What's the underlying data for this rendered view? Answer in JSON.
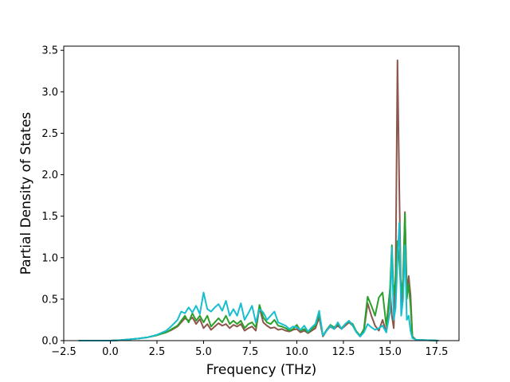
{
  "chart_data": {
    "type": "line",
    "title": "",
    "xlabel": "Frequency (THz)",
    "ylabel": "Partial Density of States",
    "xlim": [
      -2.5,
      18.7
    ],
    "ylim": [
      0,
      3.55
    ],
    "xticks": [
      -2.5,
      0.0,
      2.5,
      5.0,
      7.5,
      10.0,
      12.5,
      15.0,
      17.5
    ],
    "xtick_labels": [
      "−2.5",
      "0.0",
      "2.5",
      "5.0",
      "7.5",
      "10.0",
      "12.5",
      "15.0",
      "17.5"
    ],
    "yticks": [
      0.0,
      0.5,
      1.0,
      1.5,
      2.0,
      2.5,
      3.0,
      3.5
    ],
    "ytick_labels": [
      "0.0",
      "0.5",
      "1.0",
      "1.5",
      "2.0",
      "2.5",
      "3.0",
      "3.5"
    ],
    "grid": false,
    "legend": "none",
    "series": [
      {
        "color": "#8c564b",
        "points": [
          [
            -1.7,
            0
          ],
          [
            0,
            0
          ],
          [
            0.5,
            0.005
          ],
          [
            1,
            0.015
          ],
          [
            1.5,
            0.025
          ],
          [
            2,
            0.04
          ],
          [
            2.5,
            0.065
          ],
          [
            3,
            0.1
          ],
          [
            3.3,
            0.13
          ],
          [
            3.6,
            0.17
          ],
          [
            3.8,
            0.22
          ],
          [
            4,
            0.27
          ],
          [
            4.2,
            0.24
          ],
          [
            4.4,
            0.28
          ],
          [
            4.6,
            0.2
          ],
          [
            4.8,
            0.26
          ],
          [
            5,
            0.15
          ],
          [
            5.2,
            0.2
          ],
          [
            5.4,
            0.13
          ],
          [
            5.6,
            0.17
          ],
          [
            5.8,
            0.21
          ],
          [
            6,
            0.18
          ],
          [
            6.2,
            0.2
          ],
          [
            6.4,
            0.15
          ],
          [
            6.6,
            0.19
          ],
          [
            6.8,
            0.17
          ],
          [
            7,
            0.2
          ],
          [
            7.2,
            0.12
          ],
          [
            7.4,
            0.15
          ],
          [
            7.6,
            0.17
          ],
          [
            7.8,
            0.12
          ],
          [
            8,
            0.4
          ],
          [
            8.2,
            0.22
          ],
          [
            8.4,
            0.18
          ],
          [
            8.6,
            0.15
          ],
          [
            8.8,
            0.16
          ],
          [
            9,
            0.13
          ],
          [
            9.2,
            0.14
          ],
          [
            9.4,
            0.12
          ],
          [
            9.6,
            0.11
          ],
          [
            9.8,
            0.13
          ],
          [
            10,
            0.14
          ],
          [
            10.2,
            0.1
          ],
          [
            10.4,
            0.12
          ],
          [
            10.6,
            0.09
          ],
          [
            10.8,
            0.12
          ],
          [
            11,
            0.15
          ],
          [
            11.2,
            0.28
          ],
          [
            11.4,
            0.05
          ],
          [
            11.6,
            0.12
          ],
          [
            11.8,
            0.17
          ],
          [
            12,
            0.14
          ],
          [
            12.2,
            0.18
          ],
          [
            12.4,
            0.14
          ],
          [
            12.6,
            0.18
          ],
          [
            12.8,
            0.22
          ],
          [
            13,
            0.18
          ],
          [
            13.2,
            0.1
          ],
          [
            13.4,
            0.05
          ],
          [
            13.6,
            0.12
          ],
          [
            13.8,
            0.45
          ],
          [
            14,
            0.3
          ],
          [
            14.2,
            0.18
          ],
          [
            14.4,
            0.12
          ],
          [
            14.6,
            0.25
          ],
          [
            14.8,
            0.1
          ],
          [
            15,
            0.62
          ],
          [
            15.1,
            0.3
          ],
          [
            15.2,
            0.15
          ],
          [
            15.3,
            0.8
          ],
          [
            15.4,
            3.38
          ],
          [
            15.5,
            1.8
          ],
          [
            15.6,
            0.4
          ],
          [
            15.7,
            0.6
          ],
          [
            15.8,
            1.55
          ],
          [
            15.9,
            0.6
          ],
          [
            16,
            0.78
          ],
          [
            16.1,
            0.55
          ],
          [
            16.2,
            0.05
          ],
          [
            16.4,
            0.01
          ],
          [
            17.6,
            0
          ]
        ]
      },
      {
        "color": "#2ca02c",
        "points": [
          [
            -1.7,
            0
          ],
          [
            0,
            0
          ],
          [
            0.5,
            0.005
          ],
          [
            1,
            0.015
          ],
          [
            1.5,
            0.025
          ],
          [
            2,
            0.04
          ],
          [
            2.5,
            0.065
          ],
          [
            3,
            0.1
          ],
          [
            3.3,
            0.14
          ],
          [
            3.6,
            0.18
          ],
          [
            3.8,
            0.24
          ],
          [
            4,
            0.3
          ],
          [
            4.2,
            0.22
          ],
          [
            4.4,
            0.33
          ],
          [
            4.6,
            0.24
          ],
          [
            4.8,
            0.3
          ],
          [
            5,
            0.22
          ],
          [
            5.2,
            0.3
          ],
          [
            5.4,
            0.17
          ],
          [
            5.6,
            0.22
          ],
          [
            5.8,
            0.27
          ],
          [
            6,
            0.22
          ],
          [
            6.2,
            0.3
          ],
          [
            6.4,
            0.2
          ],
          [
            6.6,
            0.24
          ],
          [
            6.8,
            0.2
          ],
          [
            7,
            0.24
          ],
          [
            7.2,
            0.15
          ],
          [
            7.4,
            0.2
          ],
          [
            7.6,
            0.22
          ],
          [
            7.8,
            0.16
          ],
          [
            8,
            0.43
          ],
          [
            8.2,
            0.28
          ],
          [
            8.4,
            0.22
          ],
          [
            8.6,
            0.2
          ],
          [
            8.8,
            0.25
          ],
          [
            9,
            0.18
          ],
          [
            9.2,
            0.17
          ],
          [
            9.4,
            0.15
          ],
          [
            9.6,
            0.12
          ],
          [
            9.8,
            0.14
          ],
          [
            10,
            0.19
          ],
          [
            10.2,
            0.12
          ],
          [
            10.4,
            0.14
          ],
          [
            10.6,
            0.1
          ],
          [
            10.8,
            0.14
          ],
          [
            11,
            0.18
          ],
          [
            11.2,
            0.33
          ],
          [
            11.4,
            0.06
          ],
          [
            11.6,
            0.13
          ],
          [
            11.8,
            0.19
          ],
          [
            12,
            0.16
          ],
          [
            12.2,
            0.2
          ],
          [
            12.4,
            0.15
          ],
          [
            12.6,
            0.2
          ],
          [
            12.8,
            0.23
          ],
          [
            13,
            0.2
          ],
          [
            13.2,
            0.11
          ],
          [
            13.4,
            0.06
          ],
          [
            13.6,
            0.14
          ],
          [
            13.8,
            0.53
          ],
          [
            14,
            0.42
          ],
          [
            14.2,
            0.3
          ],
          [
            14.4,
            0.52
          ],
          [
            14.6,
            0.58
          ],
          [
            14.8,
            0.18
          ],
          [
            15,
            0.62
          ],
          [
            15.1,
            1.15
          ],
          [
            15.2,
            0.55
          ],
          [
            15.3,
            0.72
          ],
          [
            15.4,
            1.2
          ],
          [
            15.5,
            0.95
          ],
          [
            15.6,
            0.55
          ],
          [
            15.7,
            0.75
          ],
          [
            15.8,
            1.53
          ],
          [
            15.9,
            0.5
          ],
          [
            16,
            0.68
          ],
          [
            16.1,
            0.42
          ],
          [
            16.2,
            0.04
          ],
          [
            16.4,
            0.01
          ],
          [
            17.6,
            0
          ]
        ]
      },
      {
        "color": "#17becf",
        "points": [
          [
            -1.7,
            0
          ],
          [
            0,
            0
          ],
          [
            0.5,
            0.005
          ],
          [
            1,
            0.015
          ],
          [
            1.5,
            0.025
          ],
          [
            2,
            0.04
          ],
          [
            2.5,
            0.07
          ],
          [
            3,
            0.12
          ],
          [
            3.3,
            0.18
          ],
          [
            3.6,
            0.25
          ],
          [
            3.8,
            0.35
          ],
          [
            4,
            0.33
          ],
          [
            4.2,
            0.4
          ],
          [
            4.4,
            0.34
          ],
          [
            4.6,
            0.42
          ],
          [
            4.8,
            0.32
          ],
          [
            5,
            0.58
          ],
          [
            5.2,
            0.38
          ],
          [
            5.4,
            0.35
          ],
          [
            5.6,
            0.4
          ],
          [
            5.8,
            0.44
          ],
          [
            6,
            0.36
          ],
          [
            6.2,
            0.48
          ],
          [
            6.4,
            0.3
          ],
          [
            6.6,
            0.38
          ],
          [
            6.8,
            0.3
          ],
          [
            7,
            0.45
          ],
          [
            7.2,
            0.25
          ],
          [
            7.4,
            0.33
          ],
          [
            7.6,
            0.42
          ],
          [
            7.8,
            0.22
          ],
          [
            8,
            0.38
          ],
          [
            8.2,
            0.34
          ],
          [
            8.4,
            0.25
          ],
          [
            8.6,
            0.3
          ],
          [
            8.8,
            0.35
          ],
          [
            9,
            0.22
          ],
          [
            9.2,
            0.2
          ],
          [
            9.4,
            0.18
          ],
          [
            9.6,
            0.14
          ],
          [
            9.8,
            0.17
          ],
          [
            10,
            0.16
          ],
          [
            10.2,
            0.13
          ],
          [
            10.4,
            0.18
          ],
          [
            10.6,
            0.11
          ],
          [
            10.8,
            0.16
          ],
          [
            11,
            0.2
          ],
          [
            11.2,
            0.36
          ],
          [
            11.4,
            0.06
          ],
          [
            11.6,
            0.12
          ],
          [
            11.8,
            0.18
          ],
          [
            12,
            0.14
          ],
          [
            12.2,
            0.22
          ],
          [
            12.4,
            0.14
          ],
          [
            12.6,
            0.2
          ],
          [
            12.8,
            0.24
          ],
          [
            13,
            0.18
          ],
          [
            13.2,
            0.1
          ],
          [
            13.4,
            0.05
          ],
          [
            13.6,
            0.1
          ],
          [
            13.8,
            0.2
          ],
          [
            14,
            0.16
          ],
          [
            14.2,
            0.13
          ],
          [
            14.4,
            0.15
          ],
          [
            14.6,
            0.18
          ],
          [
            14.8,
            0.1
          ],
          [
            15,
            0.35
          ],
          [
            15.1,
            1.12
          ],
          [
            15.2,
            0.25
          ],
          [
            15.3,
            0.4
          ],
          [
            15.4,
            0.98
          ],
          [
            15.5,
            1.42
          ],
          [
            15.6,
            0.3
          ],
          [
            15.7,
            0.5
          ],
          [
            15.8,
            1.15
          ],
          [
            15.9,
            0.25
          ],
          [
            16,
            0.3
          ],
          [
            16.1,
            0.12
          ],
          [
            16.2,
            0.03
          ],
          [
            16.4,
            0.01
          ],
          [
            17.6,
            0
          ]
        ]
      }
    ]
  }
}
